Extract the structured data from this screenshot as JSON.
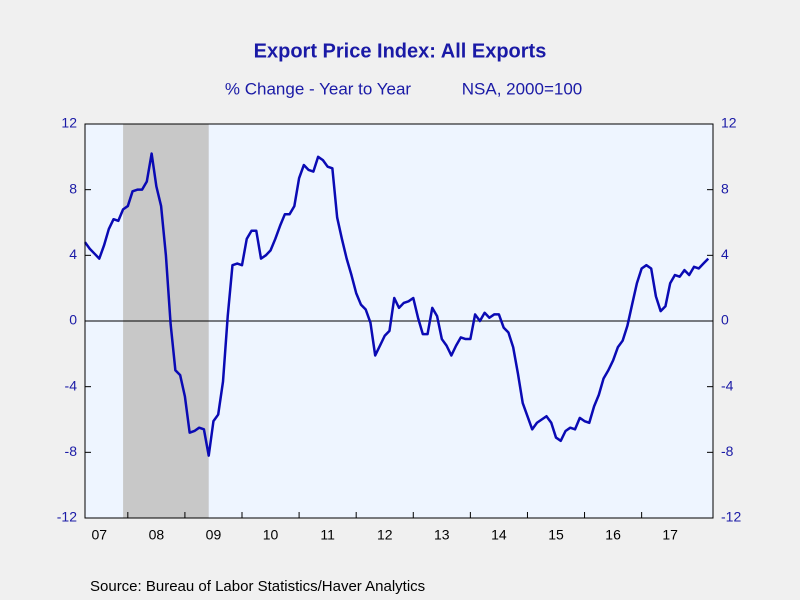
{
  "chart_data": {
    "type": "line",
    "title": "Export Price Index: All Exports",
    "subtitle": [
      "% Change - Year to Year",
      "NSA, 2000=100"
    ],
    "source": "Source:  Bureau of Labor Statistics/Haver Analytics",
    "xlim": [
      2007.25,
      2018.25
    ],
    "xticks": [
      {
        "value": 2007,
        "label": "07"
      },
      {
        "value": 2008,
        "label": "08"
      },
      {
        "value": 2009,
        "label": "09"
      },
      {
        "value": 2010,
        "label": "10"
      },
      {
        "value": 2011,
        "label": "11"
      },
      {
        "value": 2012,
        "label": "12"
      },
      {
        "value": 2013,
        "label": "13"
      },
      {
        "value": 2014,
        "label": "14"
      },
      {
        "value": 2015,
        "label": "15"
      },
      {
        "value": 2016,
        "label": "16"
      },
      {
        "value": 2017,
        "label": "17"
      }
    ],
    "ylim": [
      -12,
      12
    ],
    "yticks": [
      -12,
      -8,
      -4,
      0,
      4,
      8,
      12
    ],
    "shading": [
      2007.917,
      2009.417
    ],
    "shading_color": "#c8c8c8",
    "x": [
      2007.25,
      2007.333,
      2007.417,
      2007.5,
      2007.583,
      2007.667,
      2007.75,
      2007.833,
      2007.917,
      2008,
      2008.083,
      2008.167,
      2008.25,
      2008.333,
      2008.417,
      2008.5,
      2008.583,
      2008.667,
      2008.75,
      2008.833,
      2008.917,
      2009,
      2009.083,
      2009.167,
      2009.25,
      2009.333,
      2009.417,
      2009.5,
      2009.583,
      2009.667,
      2009.75,
      2009.833,
      2009.917,
      2010,
      2010.083,
      2010.167,
      2010.25,
      2010.333,
      2010.417,
      2010.5,
      2010.583,
      2010.667,
      2010.75,
      2010.833,
      2010.917,
      2011,
      2011.083,
      2011.167,
      2011.25,
      2011.333,
      2011.417,
      2011.5,
      2011.583,
      2011.667,
      2011.75,
      2011.833,
      2011.917,
      2012,
      2012.083,
      2012.167,
      2012.25,
      2012.333,
      2012.417,
      2012.5,
      2012.583,
      2012.667,
      2012.75,
      2012.833,
      2012.917,
      2013,
      2013.083,
      2013.167,
      2013.25,
      2013.333,
      2013.417,
      2013.5,
      2013.583,
      2013.667,
      2013.75,
      2013.833,
      2013.917,
      2014,
      2014.083,
      2014.167,
      2014.25,
      2014.333,
      2014.417,
      2014.5,
      2014.583,
      2014.667,
      2014.75,
      2014.833,
      2014.917,
      2015,
      2015.083,
      2015.167,
      2015.25,
      2015.333,
      2015.417,
      2015.5,
      2015.583,
      2015.667,
      2015.75,
      2015.833,
      2015.917,
      2016,
      2016.083,
      2016.167,
      2016.25,
      2016.333,
      2016.417,
      2016.5,
      2016.583,
      2016.667,
      2016.75,
      2016.833,
      2016.917,
      2017,
      2017.083,
      2017.167,
      2017.25,
      2017.333,
      2017.417,
      2017.5,
      2017.583,
      2017.667,
      2017.75,
      2017.833,
      2017.917,
      2018,
      2018.083,
      2018.167
    ],
    "series": [
      {
        "color": "#0a0ab4",
        "values": [
          4.8,
          4.4,
          4.1,
          3.8,
          4.6,
          5.6,
          6.2,
          6.1,
          6.8,
          7.0,
          7.9,
          8.0,
          8.0,
          8.5,
          10.2,
          8.2,
          7.0,
          4.0,
          -0.2,
          -3.0,
          -3.3,
          -4.6,
          -6.8,
          -6.7,
          -6.5,
          -6.6,
          -8.2,
          -6.1,
          -5.7,
          -3.7,
          0.3,
          3.4,
          3.5,
          3.4,
          5.0,
          5.5,
          5.5,
          3.8,
          4.0,
          4.3,
          5.0,
          5.8,
          6.5,
          6.5,
          7.0,
          8.7,
          9.5,
          9.2,
          9.1,
          10.0,
          9.8,
          9.4,
          9.3,
          6.3,
          5.0,
          3.8,
          2.8,
          1.7,
          1.0,
          0.7,
          -0.1,
          -2.1,
          -1.5,
          -0.9,
          -0.6,
          1.4,
          0.8,
          1.1,
          1.2,
          1.4,
          0.2,
          -0.8,
          -0.8,
          0.8,
          0.3,
          -1.1,
          -1.5,
          -2.1,
          -1.5,
          -1.0,
          -1.1,
          -1.1,
          0.4,
          0.0,
          0.5,
          0.2,
          0.4,
          0.4,
          -0.4,
          -0.7,
          -1.6,
          -3.2,
          -5.0,
          -5.8,
          -6.6,
          -6.2,
          -6.0,
          -5.8,
          -6.2,
          -7.1,
          -7.3,
          -6.7,
          -6.5,
          -6.6,
          -5.9,
          -6.1,
          -6.2,
          -5.2,
          -4.5,
          -3.5,
          -3.0,
          -2.4,
          -1.6,
          -1.2,
          -0.3,
          1.0,
          2.3,
          3.2,
          3.4,
          3.2,
          1.5,
          0.6,
          0.9,
          2.3,
          2.8,
          2.7,
          3.1,
          2.8,
          3.3,
          3.2,
          3.5,
          3.8
        ]
      }
    ]
  }
}
